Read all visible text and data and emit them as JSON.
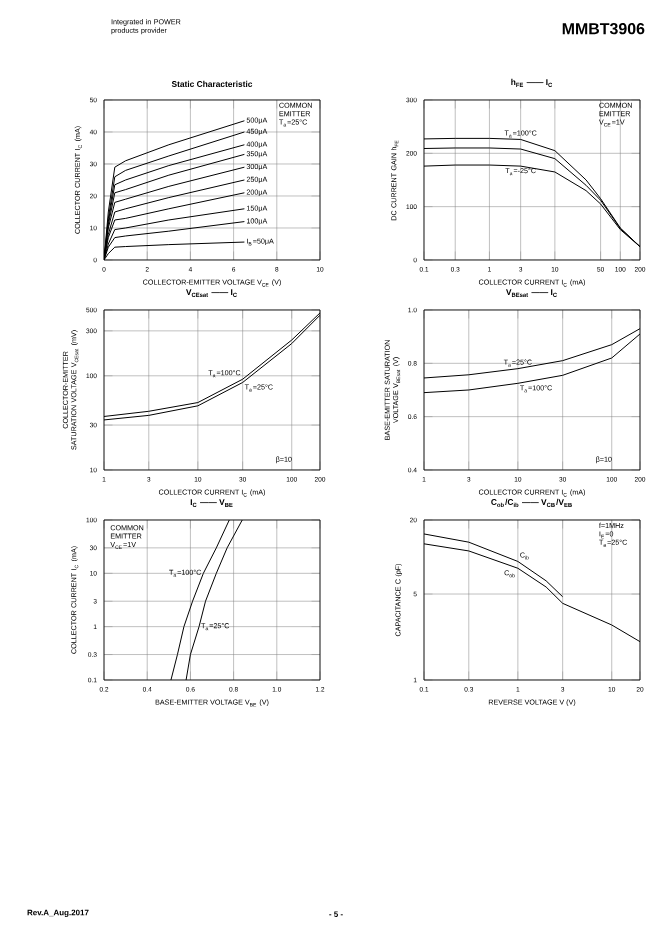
{
  "chart_data": [
    {
      "type": "line",
      "title": "Static Characteristic",
      "xlabel": "COLLECTOR-EMITTER VOLTAGE  V$_{CE}$ (V)",
      "ylabel": "COLLECTOR CURRENT  I$_{C}$ (mA)",
      "annotations": [
        "COMMON EMITTER T$_{a}$=25°C"
      ],
      "grid": true,
      "xlim": [
        0,
        10
      ],
      "ylim": [
        0,
        50
      ],
      "xticks": [
        0,
        2,
        4,
        6,
        8,
        10
      ],
      "yticks": [
        0,
        10,
        20,
        30,
        40,
        50
      ],
      "x": [
        0,
        0.2,
        0.5,
        1,
        3,
        6.5
      ],
      "series": [
        {
          "name": "500μA",
          "color": "#000000",
          "values": [
            0,
            15,
            29,
            31,
            36,
            43.5
          ]
        },
        {
          "name": "450μA",
          "color": "#000000",
          "values": [
            0,
            13,
            26,
            28,
            32.5,
            40
          ]
        },
        {
          "name": "400μA",
          "color": "#000000",
          "values": [
            0,
            12,
            23.5,
            25,
            29.5,
            36
          ]
        },
        {
          "name": "350μA",
          "color": "#000000",
          "values": [
            0,
            11,
            21,
            22,
            26.5,
            33
          ]
        },
        {
          "name": "300μA",
          "color": "#000000",
          "values": [
            0,
            10,
            18,
            19,
            23,
            29
          ]
        },
        {
          "name": "250μA",
          "color": "#000000",
          "values": [
            0,
            8,
            15,
            16,
            19.5,
            25
          ]
        },
        {
          "name": "200μA",
          "color": "#000000",
          "values": [
            0,
            7,
            12.5,
            13,
            16,
            21
          ]
        },
        {
          "name": "150μA",
          "color": "#000000",
          "values": [
            0,
            5,
            9.5,
            10,
            12.5,
            16
          ]
        },
        {
          "name": "100μA",
          "color": "#000000",
          "values": [
            0,
            4,
            7,
            7.5,
            9,
            12
          ]
        },
        {
          "name": "I$_{B}$=50μA",
          "color": "#000000",
          "values": [
            0,
            2,
            4,
            4.2,
            4.8,
            5.6
          ]
        }
      ]
    },
    {
      "type": "line",
      "title": "h$_{FE}$ —— I$_{C}$",
      "xlabel": "COLLECTOR CURRENT  I$_{C}$ (mA)",
      "ylabel": "DC CURRENT GAIN  h$_{FE}$",
      "annotations": [
        "COMMON EMITTER V$_{CE}$=1V"
      ],
      "grid": true,
      "log": "x",
      "xlim": [
        0.1,
        200
      ],
      "ylim": [
        0,
        300
      ],
      "xticks": [
        0.1,
        0.3,
        1,
        3,
        10,
        50,
        100,
        200
      ],
      "yticks": [
        0,
        100,
        200,
        300
      ],
      "x": [
        0.1,
        0.3,
        1,
        3,
        10,
        30,
        50,
        100,
        200
      ],
      "series": [
        {
          "name": "T$_{a}$=100°C",
          "color": "#000000",
          "values": [
            227,
            228,
            228,
            226,
            205,
            150,
            115,
            60,
            25
          ]
        },
        {
          "color": "#000000",
          "values": [
            209,
            210,
            210,
            208,
            190,
            140,
            112,
            59,
            25
          ]
        },
        {
          "name": "T$_{a}$=-25°C",
          "color": "#000000",
          "values": [
            176,
            178,
            178,
            176,
            165,
            130,
            105,
            57,
            25
          ]
        }
      ]
    },
    {
      "type": "line",
      "title": "V$_{CEsat}$ —— I$_{C}$",
      "xlabel": "COLLECTOR CURRENT  I$_{C}$ (mA)",
      "ylabel": "COLLECTOR-EMITTER SATURATION VOLTAGE  V$_{CEsat}$ (mV)",
      "annotations": [
        "β=10"
      ],
      "grid": true,
      "log": "xy",
      "xlim": [
        1,
        200
      ],
      "ylim": [
        10,
        500
      ],
      "xticks": [
        1,
        3,
        10,
        30,
        100,
        200
      ],
      "yticks": [
        10,
        30,
        100,
        300,
        500
      ],
      "x": [
        1,
        3,
        10,
        30,
        100,
        200
      ],
      "series": [
        {
          "name": "T$_{a}$=100°C",
          "color": "#000000",
          "values": [
            37,
            42,
            52,
            92,
            240,
            465
          ]
        },
        {
          "name": "T$_{a}$=25°C",
          "color": "#000000",
          "values": [
            34,
            38,
            48,
            85,
            220,
            440
          ]
        }
      ]
    },
    {
      "type": "line",
      "title": "V$_{BEsat}$ —— I$_{C}$",
      "xlabel": "COLLECTOR CURRENT  I$_{C}$ (mA)",
      "ylabel": "BASE-EMITTER SATURATION VOLTAGE  V$_{BEsat}$ (V)",
      "annotations": [
        "β=10"
      ],
      "grid": true,
      "log": "x",
      "xlim": [
        1,
        200
      ],
      "ylim": [
        0.4,
        1.0
      ],
      "xticks": [
        1,
        3,
        10,
        30,
        100,
        200
      ],
      "yticks": [
        0.4,
        0.6,
        0.8,
        {
          "value": 1.0,
          "label": "1.0"
        }
      ],
      "x": [
        1,
        3,
        10,
        30,
        100,
        200
      ],
      "series": [
        {
          "name": "T$_{a}$=25°C",
          "color": "#000000",
          "values": [
            0.745,
            0.757,
            0.78,
            0.81,
            0.87,
            0.93
          ]
        },
        {
          "name": "T$_{a}$=100°C",
          "color": "#000000",
          "values": [
            0.69,
            0.7,
            0.725,
            0.755,
            0.82,
            0.91
          ]
        }
      ]
    },
    {
      "type": "line",
      "title": "I$_{C}$ —— V$_{BE}$",
      "xlabel": "BASE-EMITTER VOLTAGE  V$_{BE}$ (V)",
      "ylabel": "COLLECTOR CURRENT  I$_{C}$ (mA)",
      "annotations": [
        "COMMON EMITTER V$_{CE}$=1V"
      ],
      "grid": true,
      "log": "y",
      "xlim": [
        0.2,
        1.2
      ],
      "ylim": [
        0.1,
        100
      ],
      "xticks": [
        0.2,
        0.4,
        0.6,
        0.8,
        {
          "value": 1.0,
          "label": "1.0"
        },
        1.2
      ],
      "yticks": [
        0.1,
        0.3,
        1,
        3,
        10,
        30,
        100
      ],
      "series": [
        {
          "name": "T$_{a}$=100°C",
          "color": "#000000",
          "x": [
            0.51,
            0.54,
            0.57,
            0.61,
            0.66,
            0.72,
            0.78
          ],
          "values": [
            0.1,
            0.3,
            1,
            3,
            10,
            30,
            100
          ]
        },
        {
          "name": "T$_{a}$=25°C",
          "color": "#000000",
          "x": [
            0.58,
            0.6,
            0.64,
            0.67,
            0.72,
            0.77,
            0.84
          ],
          "values": [
            0.1,
            0.3,
            1,
            3,
            10,
            30,
            100
          ]
        }
      ]
    },
    {
      "type": "line",
      "title": "C$_{ob}$/C$_{ib}$ —— V$_{CB}$/V$_{EB}$",
      "xlabel": "REVERSE VOLTAGE  V (V)",
      "ylabel": "CAPACITANCE  C (pF)",
      "annotations": [
        "f=1MHz I$_{E}$=0 T$_{a}$=25°C"
      ],
      "grid": true,
      "log": "xy",
      "xlim": [
        0.1,
        20
      ],
      "ylim": [
        1,
        20
      ],
      "xticks": [
        0.1,
        0.3,
        1,
        3,
        10,
        20
      ],
      "yticks": [
        1,
        5,
        20
      ],
      "series": [
        {
          "name": "C$_{ib}$",
          "color": "#000000",
          "x": [
            0.1,
            0.3,
            1,
            2,
            3
          ],
          "values": [
            15.4,
            13.2,
            9.2,
            6.4,
            4.75
          ]
        },
        {
          "name": "C$_{ob}$",
          "color": "#000000",
          "x": [
            0.1,
            0.3,
            1,
            2,
            3,
            10,
            20
          ],
          "values": [
            12.8,
            11.2,
            8.1,
            5.7,
            4.2,
            2.8,
            2.05
          ]
        }
      ]
    },
    {
      "type": "other",
      "title": "MMBT3906",
      "annotations": [
        "Integrated in POWER products provider",
        "Rev.A_Aug.2017",
        "- 5 -"
      ]
    }
  ]
}
